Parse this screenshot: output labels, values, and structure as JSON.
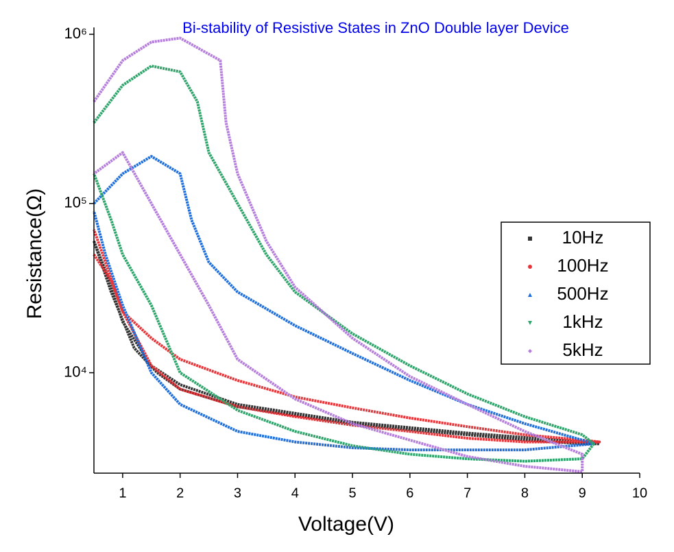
{
  "chart_data": {
    "type": "scatter",
    "title": "Bi-stability of Resistive States in ZnO Double layer Device",
    "x_label": "Voltage(V)",
    "y_label": "Resistance(Ω)",
    "xlim": [
      0.5,
      10
    ],
    "xticks": [
      1,
      2,
      3,
      4,
      5,
      6,
      7,
      8,
      9,
      10
    ],
    "ylim": [
      2550,
      1000000
    ],
    "y_scale": "log",
    "yticks": [
      {
        "value": 10000,
        "label": "10⁴"
      },
      {
        "value": 100000,
        "label": "10⁵"
      },
      {
        "value": 1000000,
        "label": "10⁶"
      }
    ],
    "legend": "right",
    "series": [
      {
        "name": "10Hz",
        "color": "#333333",
        "marker": "square",
        "x": [
          0.5,
          0.8,
          1.2,
          1.6,
          2,
          3,
          4,
          5,
          6,
          7,
          8,
          9,
          9.3,
          9,
          7,
          5,
          3,
          2,
          1.5,
          1,
          0.7,
          0.5
        ],
        "values": [
          60000,
          30000,
          14000,
          10000,
          8000,
          6300,
          5600,
          5000,
          4600,
          4300,
          4000,
          3800,
          3800,
          3900,
          4400,
          5100,
          6500,
          8500,
          11000,
          20000,
          40000,
          60000
        ]
      },
      {
        "name": "100Hz",
        "color": "#e8353a",
        "marker": "circle",
        "x": [
          0.5,
          0.8,
          1,
          1.5,
          2,
          3,
          4,
          5,
          6,
          7,
          8,
          9,
          9.3,
          8,
          7,
          6,
          5,
          4,
          3,
          2,
          1.5,
          1,
          0.7,
          0.5
        ],
        "values": [
          50000,
          35000,
          23000,
          16000,
          12000,
          9000,
          7200,
          6200,
          5400,
          4800,
          4300,
          4000,
          3900,
          3900,
          4100,
          4500,
          4900,
          5500,
          6300,
          8000,
          11000,
          23000,
          45000,
          70000
        ]
      },
      {
        "name": "500Hz",
        "color": "#1f6fdc",
        "marker": "triangle",
        "x": [
          0.5,
          1,
          1.5,
          2,
          2.2,
          2.5,
          3,
          4,
          5,
          6,
          7,
          8,
          9,
          9.2,
          8,
          6,
          5,
          4,
          3,
          2,
          1.5,
          1,
          0.7,
          0.5
        ],
        "values": [
          100000,
          150000,
          190000,
          150000,
          80000,
          45000,
          30000,
          19000,
          13000,
          9000,
          6500,
          5000,
          4000,
          3800,
          3500,
          3500,
          3600,
          3900,
          4500,
          6500,
          10000,
          25000,
          50000,
          90000
        ]
      },
      {
        "name": "1kHz",
        "color": "#2ea56a",
        "marker": "down-triangle",
        "x": [
          0.5,
          1,
          1.5,
          2,
          2.3,
          2.5,
          3,
          3.5,
          4,
          5,
          6,
          7,
          8,
          9,
          9.2,
          9,
          8,
          7,
          6,
          5,
          4,
          3,
          2,
          1.5,
          1,
          0.8,
          0.5
        ],
        "values": [
          300000,
          500000,
          650000,
          600000,
          400000,
          200000,
          100000,
          50000,
          30000,
          17000,
          11000,
          7500,
          5500,
          4300,
          3800,
          3100,
          3000,
          3100,
          3300,
          3700,
          4500,
          6000,
          10000,
          25000,
          50000,
          80000,
          150000
        ]
      },
      {
        "name": "5kHz",
        "color": "#b57edc",
        "marker": "diamond",
        "x": [
          0.5,
          1,
          1.5,
          2,
          2.7,
          2.8,
          3,
          3.5,
          4,
          5,
          6,
          7,
          8,
          9,
          9,
          8,
          7,
          6,
          5,
          4,
          3,
          2.5,
          2,
          1.5,
          1,
          0.5
        ],
        "values": [
          400000,
          700000,
          900000,
          950000,
          700000,
          300000,
          150000,
          60000,
          32000,
          16000,
          9500,
          6500,
          4500,
          3300,
          2600,
          2800,
          3200,
          4000,
          5000,
          7000,
          12000,
          25000,
          50000,
          100000,
          200000,
          150000
        ]
      }
    ]
  }
}
